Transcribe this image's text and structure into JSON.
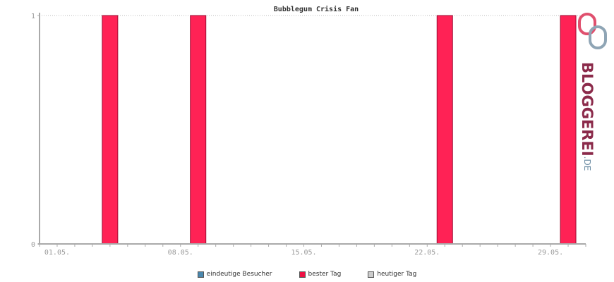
{
  "chart_data": {
    "type": "bar",
    "title": "Bubblegum Crisis Fan",
    "x_tick_labels": [
      "01.05.",
      "08.05.",
      "15.05.",
      "22.05.",
      "29.05."
    ],
    "x_tick_days": [
      1,
      8,
      15,
      22,
      29
    ],
    "day_range": [
      0,
      31
    ],
    "y_tick_labels": [
      "0",
      "1"
    ],
    "ylim": [
      0,
      1
    ],
    "grid": "top dotted line only",
    "series": [
      {
        "name": "besterTag",
        "color": "#ff2255",
        "points": [
          {
            "day": 4,
            "value": 1
          },
          {
            "day": 9,
            "value": 1
          },
          {
            "day": 23,
            "value": 1
          },
          {
            "day": 30,
            "value": 1
          }
        ]
      }
    ],
    "legend": {
      "placement": "bottom-center",
      "items": [
        {
          "label": "eindeutige Besucher",
          "color": "#4a87ad"
        },
        {
          "label": "bester Tag",
          "color": "#ee1144"
        },
        {
          "label": "heutiger Tag",
          "color": "#cccccc"
        }
      ]
    }
  },
  "logo": {
    "main": "BLOGGEREI",
    "tld": ".DE",
    "colors": {
      "main": "#8b2a4a",
      "tld": "#6f8fa6",
      "icon_pink": "#e0506e",
      "icon_gray": "#8fa5b5"
    }
  }
}
